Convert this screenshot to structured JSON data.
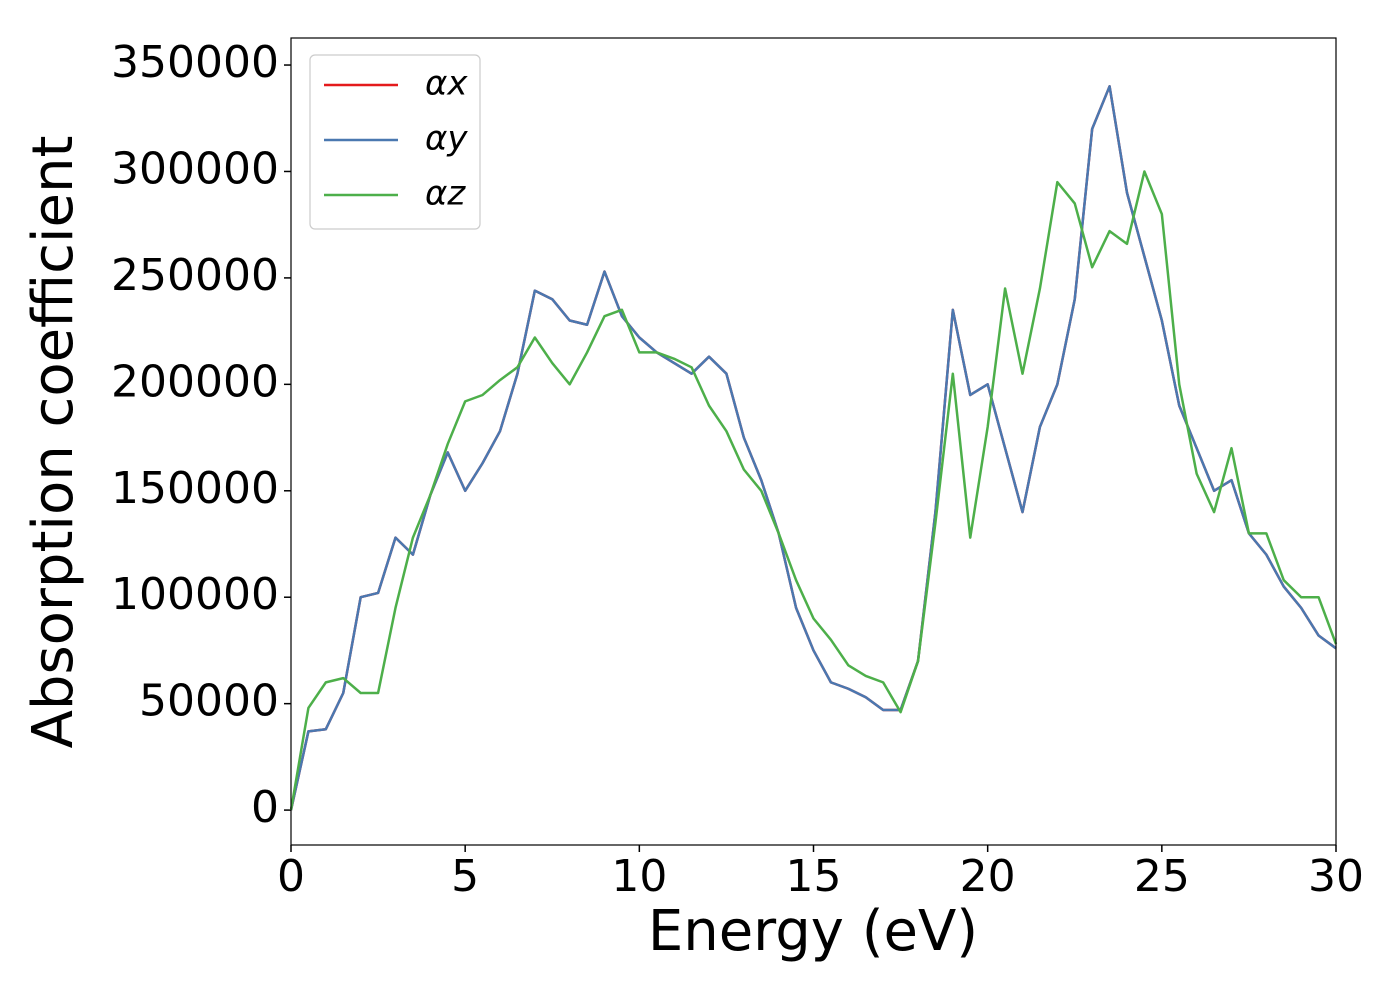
{
  "chart_data": {
    "type": "line",
    "xlabel": "Energy (eV)",
    "ylabel": "Absorption coefficient",
    "x": [
      0,
      0.5,
      1,
      1.5,
      2,
      2.5,
      3,
      3.5,
      4,
      4.5,
      5,
      5.5,
      6,
      6.5,
      7,
      7.5,
      8,
      8.5,
      9,
      9.5,
      10,
      10.5,
      11,
      11.5,
      12,
      12.5,
      13,
      13.5,
      14,
      14.5,
      15,
      15.5,
      16,
      16.5,
      17,
      17.5,
      18,
      18.5,
      19,
      19.5,
      20,
      20.5,
      21,
      21.5,
      22,
      22.5,
      23,
      23.5,
      24,
      24.5,
      25,
      25.5,
      26,
      26.5,
      27,
      27.5,
      28,
      28.5,
      29,
      29.5,
      30
    ],
    "series": [
      {
        "name": "αx",
        "color": "#e41a1c",
        "values": [
          0,
          37000,
          38000,
          55000,
          100000,
          102000,
          128000,
          120000,
          148000,
          168000,
          150000,
          163000,
          178000,
          205000,
          244000,
          240000,
          230000,
          228000,
          253000,
          232000,
          222000,
          215000,
          210000,
          205000,
          213000,
          205000,
          175000,
          155000,
          130000,
          95000,
          75000,
          60000,
          57000,
          53000,
          47000,
          47000,
          70000,
          140000,
          235000,
          195000,
          200000,
          170000,
          140000,
          180000,
          200000,
          240000,
          320000,
          340000,
          290000,
          260000,
          230000,
          190000,
          170000,
          150000,
          155000,
          130000,
          120000,
          105000,
          95000,
          82000,
          76000
        ]
      },
      {
        "name": "αy",
        "color": "#4a78b0",
        "values": [
          0,
          37000,
          38000,
          55000,
          100000,
          102000,
          128000,
          120000,
          148000,
          168000,
          150000,
          163000,
          178000,
          205000,
          244000,
          240000,
          230000,
          228000,
          253000,
          232000,
          222000,
          215000,
          210000,
          205000,
          213000,
          205000,
          175000,
          155000,
          130000,
          95000,
          75000,
          60000,
          57000,
          53000,
          47000,
          47000,
          70000,
          140000,
          235000,
          195000,
          200000,
          170000,
          140000,
          180000,
          200000,
          240000,
          320000,
          340000,
          290000,
          260000,
          230000,
          190000,
          170000,
          150000,
          155000,
          130000,
          120000,
          105000,
          95000,
          82000,
          76000
        ]
      },
      {
        "name": "αz",
        "color": "#4daf4a",
        "values": [
          0,
          48000,
          60000,
          62000,
          55000,
          55000,
          95000,
          128000,
          148000,
          172000,
          192000,
          195000,
          202000,
          208000,
          222000,
          210000,
          200000,
          215000,
          232000,
          235000,
          215000,
          215000,
          212000,
          208000,
          190000,
          178000,
          160000,
          150000,
          130000,
          108000,
          90000,
          80000,
          68000,
          63000,
          60000,
          46000,
          70000,
          135000,
          205000,
          128000,
          180000,
          245000,
          205000,
          245000,
          295000,
          285000,
          255000,
          272000,
          266000,
          300000,
          280000,
          200000,
          158000,
          140000,
          170000,
          130000,
          130000,
          108000,
          100000,
          100000,
          78000
        ]
      }
    ],
    "xlim": [
      0,
      30
    ],
    "xticks": [
      0,
      5,
      10,
      15,
      20,
      25,
      30
    ],
    "ylim": [
      -16400,
      362700
    ],
    "yticks": [
      0,
      50000,
      100000,
      150000,
      200000,
      250000,
      300000,
      350000
    ],
    "legend": "upper left",
    "grid": false
  }
}
